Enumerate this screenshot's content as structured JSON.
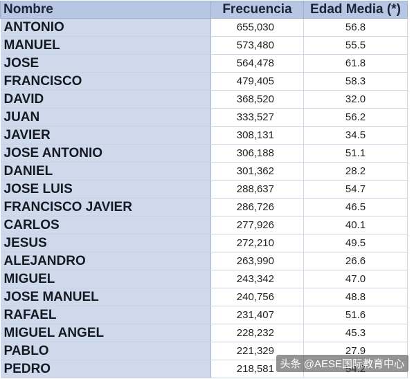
{
  "headers": {
    "name": "Nombre",
    "frequency": "Frecuencia",
    "age": "Edad Media (*)"
  },
  "rows": [
    {
      "name": "ANTONIO",
      "frequency": "655,030",
      "age": "56.8"
    },
    {
      "name": "MANUEL",
      "frequency": "573,480",
      "age": "55.5"
    },
    {
      "name": "JOSE",
      "frequency": "564,478",
      "age": "61.8"
    },
    {
      "name": "FRANCISCO",
      "frequency": "479,405",
      "age": "58.3"
    },
    {
      "name": "DAVID",
      "frequency": "368,520",
      "age": "32.0"
    },
    {
      "name": "JUAN",
      "frequency": "333,527",
      "age": "56.2"
    },
    {
      "name": "JAVIER",
      "frequency": "308,131",
      "age": "34.5"
    },
    {
      "name": "JOSE ANTONIO",
      "frequency": "306,188",
      "age": "51.1"
    },
    {
      "name": "DANIEL",
      "frequency": "301,362",
      "age": "28.2"
    },
    {
      "name": "JOSE LUIS",
      "frequency": "288,637",
      "age": "54.7"
    },
    {
      "name": "FRANCISCO JAVIER",
      "frequency": "286,726",
      "age": "46.5"
    },
    {
      "name": "CARLOS",
      "frequency": "277,926",
      "age": "40.1"
    },
    {
      "name": "JESUS",
      "frequency": "272,210",
      "age": "49.5"
    },
    {
      "name": "ALEJANDRO",
      "frequency": "263,990",
      "age": "26.6"
    },
    {
      "name": "MIGUEL",
      "frequency": "243,342",
      "age": "47.0"
    },
    {
      "name": "JOSE MANUEL",
      "frequency": "240,756",
      "age": "48.8"
    },
    {
      "name": "RAFAEL",
      "frequency": "231,407",
      "age": "51.6"
    },
    {
      "name": "MIGUEL ANGEL",
      "frequency": "228,232",
      "age": "45.3"
    },
    {
      "name": "PABLO",
      "frequency": "221,329",
      "age": "27.9"
    },
    {
      "name": "PEDRO",
      "frequency": "218,581",
      "age": "54.2"
    }
  ],
  "watermark": "头条 @AESE国际教育中心"
}
